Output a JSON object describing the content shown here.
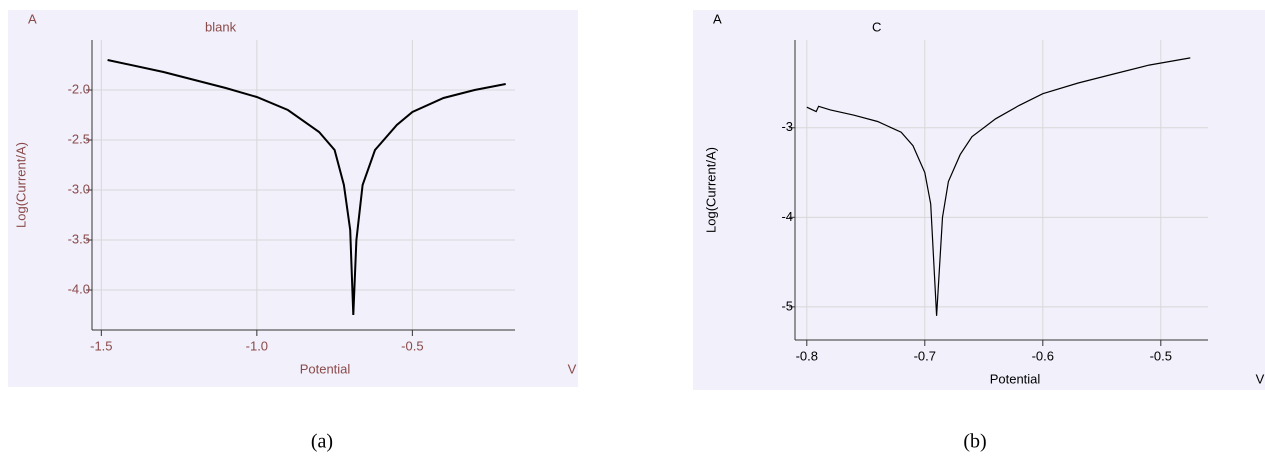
{
  "chart_data": [
    {
      "type": "line",
      "title": "blank",
      "corner_label": "A",
      "xlabel": "Potential",
      "x_unit": "V",
      "ylabel": "Log(Current/A)",
      "caption": "(a)",
      "text_color": "#8b4a4a",
      "grid": true,
      "xlim": [
        -1.53,
        -0.17
      ],
      "ylim": [
        -4.4,
        -1.5
      ],
      "xticks": [
        -1.5,
        {
          "value": -1.0,
          "label": "-1.0"
        },
        -0.5
      ],
      "yticks": [
        {
          "value": -2.0,
          "label": "-2.0"
        },
        -2.5,
        {
          "value": -3.0,
          "label": "-3.0"
        },
        -3.5,
        {
          "value": -4.0,
          "label": "-4.0"
        }
      ],
      "x": [
        -1.48,
        -1.3,
        -1.1,
        -1.0,
        -0.9,
        -0.8,
        -0.75,
        -0.72,
        -0.7,
        -0.69,
        -0.68,
        -0.66,
        -0.62,
        -0.55,
        -0.5,
        -0.4,
        -0.3,
        -0.2
      ],
      "series": [
        {
          "color": "#000000",
          "values": [
            -1.7,
            -1.82,
            -1.98,
            -2.07,
            -2.2,
            -2.42,
            -2.6,
            -2.95,
            -3.4,
            -4.25,
            -3.5,
            -2.95,
            -2.6,
            -2.35,
            -2.22,
            -2.08,
            -2.0,
            -1.94
          ]
        }
      ]
    },
    {
      "type": "line",
      "title": "C",
      "corner_label": "A",
      "xlabel": "Potential",
      "x_unit": "V",
      "ylabel": "Log(Current/A)",
      "caption": "(b)",
      "text_color": "#000000",
      "grid": true,
      "xlim": [
        -0.81,
        -0.46
      ],
      "ylim": [
        -5.37,
        -2.02
      ],
      "xticks": [
        -0.8,
        -0.7,
        -0.6,
        -0.5
      ],
      "yticks": [
        -3,
        -4,
        -5
      ],
      "x": [
        -0.8,
        -0.792,
        -0.79,
        -0.78,
        -0.76,
        -0.74,
        -0.72,
        -0.71,
        -0.7,
        -0.695,
        -0.69,
        -0.685,
        -0.68,
        -0.67,
        -0.66,
        -0.64,
        -0.62,
        -0.6,
        -0.57,
        -0.54,
        -0.51,
        -0.475
      ],
      "series": [
        {
          "color": "#000000",
          "values": [
            -2.77,
            -2.82,
            -2.76,
            -2.8,
            -2.86,
            -2.93,
            -3.05,
            -3.2,
            -3.5,
            -3.85,
            -5.1,
            -4.0,
            -3.6,
            -3.3,
            -3.1,
            -2.9,
            -2.75,
            -2.62,
            -2.5,
            -2.4,
            -2.3,
            -2.22
          ]
        }
      ]
    }
  ]
}
